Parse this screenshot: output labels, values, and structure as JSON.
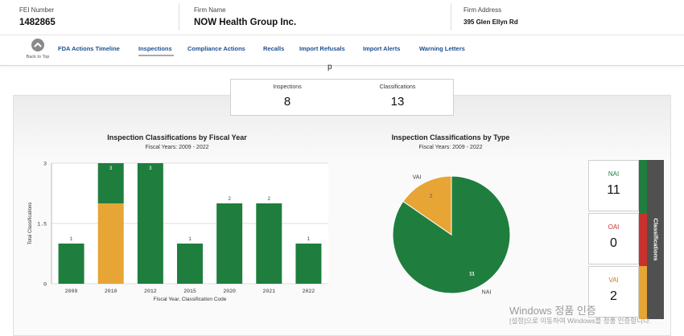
{
  "header": {
    "fei_label": "FEI Number",
    "fei_value": "1482865",
    "firm_label": "Firm Name",
    "firm_value": "NOW Health Group Inc.",
    "address_label": "Firm Address",
    "address_value": "395 Glen Ellyn Rd"
  },
  "nav": {
    "back_to_top": "Back to Top",
    "items": [
      {
        "label": "FDA Actions Timeline",
        "active": false
      },
      {
        "label": "Inspections",
        "active": true
      },
      {
        "label": "Compliance Actions",
        "active": false
      },
      {
        "label": "Recalls",
        "active": false
      },
      {
        "label": "Import Refusals",
        "active": false
      },
      {
        "label": "Import Alerts",
        "active": false
      },
      {
        "label": "Warning Letters",
        "active": false
      }
    ]
  },
  "fragment_text": "p",
  "summary": {
    "inspections_label": "Inspections",
    "inspections_value": "8",
    "classifications_label": "Classifications",
    "classifications_value": "13"
  },
  "colors": {
    "NAI": "#1f7e3e",
    "OAI": "#c8312c",
    "VAI": "#e6a534",
    "nav_link": "#1d4f91"
  },
  "chart_data": [
    {
      "type": "bar",
      "stacked": true,
      "title": "Inspection Classifications by Fiscal Year",
      "subtitle": "Fiscal Years: 2009 - 2022",
      "xlabel": "Fiscal Year, Classification Code",
      "ylabel": "Total Classifications",
      "ylim": [
        0,
        3
      ],
      "yticks": [
        "0",
        "1.5",
        "3"
      ],
      "grid": true,
      "categories": [
        "2009",
        "2010",
        "2012",
        "2015",
        "2020",
        "2021",
        "2022"
      ],
      "series": [
        {
          "name": "VAI",
          "color": "#e6a534",
          "values": [
            0,
            2,
            0,
            0,
            0,
            0,
            0
          ]
        },
        {
          "name": "NAI",
          "color": "#1f7e3e",
          "values": [
            1,
            1,
            3,
            1,
            2,
            2,
            1
          ]
        }
      ],
      "bar_labels": [
        "1",
        "3",
        "3",
        "1",
        "2",
        "2",
        "1"
      ]
    },
    {
      "type": "pie",
      "title": "Inspection Classifications by Type",
      "subtitle": "Fiscal Years: 2009 - 2022",
      "slices": [
        {
          "label": "NAI",
          "value": 11,
          "color": "#1f7e3e"
        },
        {
          "label": "VAI",
          "value": 2,
          "color": "#e6a534"
        }
      ]
    }
  ],
  "side_panel": {
    "title": "Classifications",
    "items": [
      {
        "label": "NAI",
        "value": "11",
        "color": "#1f7e3e"
      },
      {
        "label": "OAI",
        "value": "0",
        "color": "#c8312c"
      },
      {
        "label": "VAI",
        "value": "2",
        "color": "#e6a534"
      }
    ]
  },
  "watermark": {
    "line1": "Windows 정품 인증",
    "line2": "[설정]으로 이동하여 Windows를 정품 인증합니다."
  }
}
